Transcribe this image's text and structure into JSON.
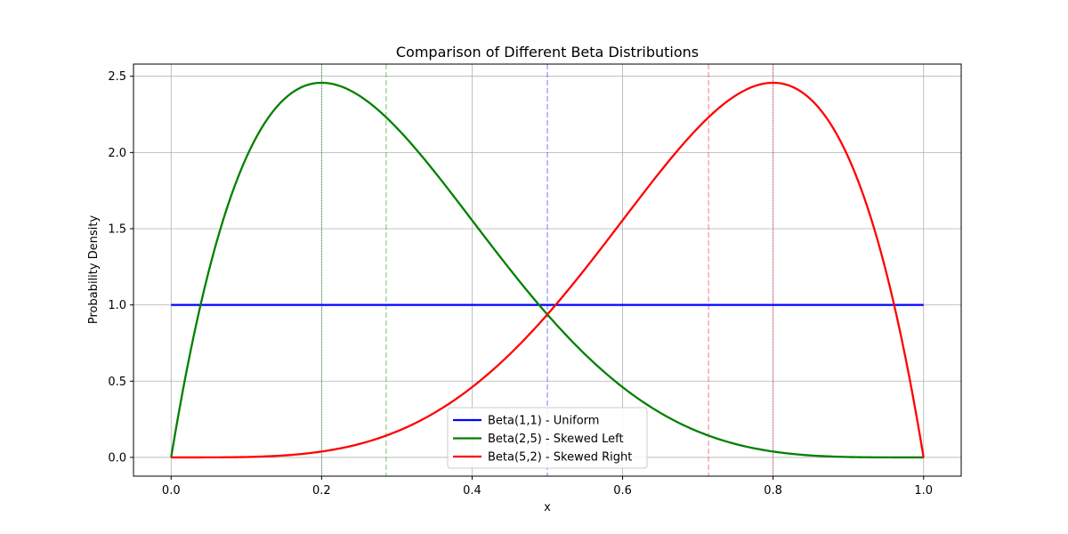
{
  "chart_data": {
    "type": "line",
    "title": "Comparison of Different Beta Distributions",
    "xlabel": "x",
    "ylabel": "Probability Density",
    "xlim": [
      -0.05,
      1.05
    ],
    "ylim": [
      -0.123,
      2.58
    ],
    "x_ticks": [
      "0.0",
      "0.2",
      "0.4",
      "0.6",
      "0.8",
      "1.0"
    ],
    "y_ticks": [
      "0.0",
      "0.5",
      "1.0",
      "1.5",
      "2.0",
      "2.5"
    ],
    "grid": true,
    "legend_position": "lower center",
    "series": [
      {
        "name": "Beta(1,1) - Uniform",
        "color": "#0000ff",
        "alpha": 1,
        "beta": 1,
        "mean": 0.5,
        "x": [
          0.0,
          0.1,
          0.2,
          0.3,
          0.4,
          0.5,
          0.6,
          0.7,
          0.8,
          0.9,
          1.0
        ],
        "y": [
          1.0,
          1.0,
          1.0,
          1.0,
          1.0,
          1.0,
          1.0,
          1.0,
          1.0,
          1.0,
          1.0
        ]
      },
      {
        "name": "Beta(2,5) - Skewed Left",
        "color": "#008000",
        "alpha": 2,
        "beta": 5,
        "mode": 0.2,
        "mean": 0.2857,
        "x": [
          0.0,
          0.05,
          0.1,
          0.15,
          0.2,
          0.25,
          0.3,
          0.35,
          0.4,
          0.45,
          0.5,
          0.55,
          0.6,
          0.65,
          0.7,
          0.75,
          0.8,
          0.85,
          0.9,
          0.95,
          1.0
        ],
        "y": [
          0.0,
          1.2381,
          1.9683,
          2.3232,
          2.4576,
          2.373,
          2.1609,
          1.8561,
          1.5552,
          1.2354,
          0.9375,
          0.6765,
          0.4608,
          0.2941,
          0.1701,
          0.0879,
          0.0384,
          0.013,
          0.0054,
          0.0002,
          0.0
        ]
      },
      {
        "name": "Beta(5,2) - Skewed Right",
        "color": "#ff0000",
        "alpha": 5,
        "beta": 2,
        "mode": 0.8,
        "mean": 0.7143,
        "x": [
          0.0,
          0.05,
          0.1,
          0.15,
          0.2,
          0.25,
          0.3,
          0.35,
          0.4,
          0.45,
          0.5,
          0.55,
          0.6,
          0.65,
          0.7,
          0.75,
          0.8,
          0.85,
          0.9,
          0.95,
          1.0
        ],
        "y": [
          0.0,
          0.0002,
          0.0054,
          0.013,
          0.0384,
          0.0879,
          0.1701,
          0.2941,
          0.4608,
          0.6765,
          0.9375,
          1.2354,
          1.5552,
          1.8561,
          2.1609,
          2.373,
          2.4576,
          2.3232,
          1.9683,
          1.2381,
          0.0
        ]
      }
    ],
    "reference_lines": [
      {
        "x": 0.5,
        "color": "#0000ff",
        "style": "dashed",
        "kind": "mean"
      },
      {
        "x": 0.2857,
        "color": "#008000",
        "style": "dashed",
        "kind": "mean"
      },
      {
        "x": 0.2,
        "color": "#008000",
        "style": "dotted",
        "kind": "mode"
      },
      {
        "x": 0.7143,
        "color": "#ff0000",
        "style": "dashed",
        "kind": "mean"
      },
      {
        "x": 0.8,
        "color": "#ff0000",
        "style": "dotted",
        "kind": "mode"
      }
    ]
  }
}
